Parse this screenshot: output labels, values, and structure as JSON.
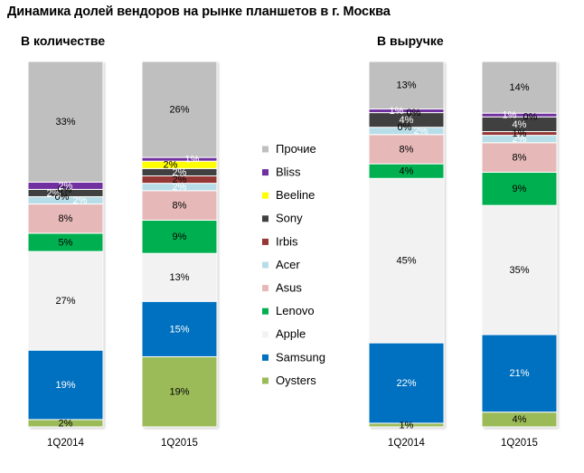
{
  "figure": {
    "title": "Динамика долей вендоров на рынке планшетов в г. Москва",
    "legend_position": "center"
  },
  "chart_data": [
    {
      "type": "bar",
      "stacked": true,
      "title": "В количестве",
      "categories": [
        "1Q2014",
        "1Q2015"
      ],
      "unit": "%",
      "series": [
        {
          "name": "Oysters",
          "color": "#9BBB59",
          "label_color": "#000000",
          "values": [
            2,
            19
          ],
          "data_labels": [
            "2%",
            "19%"
          ]
        },
        {
          "name": "Samsung",
          "color": "#0070C0",
          "label_color": "#FFFFFF",
          "values": [
            19,
            15
          ],
          "data_labels": [
            "19%",
            "15%"
          ]
        },
        {
          "name": "Apple",
          "color": "#F2F2F2",
          "label_color": "#000000",
          "values": [
            27,
            13
          ],
          "data_labels": [
            "27%",
            "13%"
          ]
        },
        {
          "name": "Lenovo",
          "color": "#00B050",
          "label_color": "#000000",
          "values": [
            5,
            9
          ],
          "data_labels": [
            "5%",
            "9%"
          ]
        },
        {
          "name": "Asus",
          "color": "#E6B9B8",
          "label_color": "#000000",
          "values": [
            8,
            8
          ],
          "data_labels": [
            "8%",
            "8%"
          ]
        },
        {
          "name": "Acer",
          "color": "#B7DEE8",
          "label_color": "#FFFFFF",
          "values": [
            2,
            2
          ],
          "data_labels": [
            "2%",
            "2%"
          ]
        },
        {
          "name": "Irbis",
          "color": "#953735",
          "label_color": "#000000",
          "values": [
            0,
            2
          ],
          "data_labels": [
            "0%",
            "2%"
          ]
        },
        {
          "name": "Sony",
          "color": "#404040",
          "label_color": "#FFFFFF",
          "values": [
            2,
            2
          ],
          "data_labels": [
            "2%",
            "2%"
          ]
        },
        {
          "name": "Beeline",
          "color": "#FFFF00",
          "label_color": "#000000",
          "values": [
            0,
            2
          ],
          "data_labels": [
            "0%",
            "2%"
          ]
        },
        {
          "name": "Bliss",
          "color": "#7030A0",
          "label_color": "#FFFFFF",
          "values": [
            2,
            1
          ],
          "data_labels": [
            "2%",
            "1%"
          ]
        },
        {
          "name": "Прочие",
          "color": "#BFBFBF",
          "label_color": "#000000",
          "values": [
            33,
            26
          ],
          "data_labels": [
            "33%",
            "26%"
          ]
        }
      ]
    },
    {
      "type": "bar",
      "stacked": true,
      "title": "В выручке",
      "categories": [
        "1Q2014",
        "1Q2015"
      ],
      "unit": "%",
      "series": [
        {
          "name": "Oysters",
          "color": "#9BBB59",
          "label_color": "#000000",
          "values": [
            1,
            4
          ],
          "data_labels": [
            "1%",
            "4%"
          ]
        },
        {
          "name": "Samsung",
          "color": "#0070C0",
          "label_color": "#FFFFFF",
          "values": [
            22,
            21
          ],
          "data_labels": [
            "22%",
            "21%"
          ]
        },
        {
          "name": "Apple",
          "color": "#F2F2F2",
          "label_color": "#000000",
          "values": [
            45,
            35
          ],
          "data_labels": [
            "45%",
            "35%"
          ]
        },
        {
          "name": "Lenovo",
          "color": "#00B050",
          "label_color": "#000000",
          "values": [
            4,
            9
          ],
          "data_labels": [
            "4%",
            "9%"
          ]
        },
        {
          "name": "Asus",
          "color": "#E6B9B8",
          "label_color": "#000000",
          "values": [
            8,
            8
          ],
          "data_labels": [
            "8%",
            "8%"
          ]
        },
        {
          "name": "Acer",
          "color": "#B7DEE8",
          "label_color": "#FFFFFF",
          "values": [
            2,
            2
          ],
          "data_labels": [
            "2%",
            "2%"
          ]
        },
        {
          "name": "Irbis",
          "color": "#953735",
          "label_color": "#000000",
          "values": [
            0,
            1
          ],
          "data_labels": [
            "0%",
            "1%"
          ]
        },
        {
          "name": "Sony",
          "color": "#404040",
          "label_color": "#FFFFFF",
          "values": [
            4,
            4
          ],
          "data_labels": [
            "4%",
            "4%"
          ]
        },
        {
          "name": "Beeline",
          "color": "#FFFF00",
          "label_color": "#000000",
          "values": [
            0,
            0
          ],
          "data_labels": [
            "0%",
            "0%"
          ]
        },
        {
          "name": "Bliss",
          "color": "#7030A0",
          "label_color": "#FFFFFF",
          "values": [
            1,
            1
          ],
          "data_labels": [
            "1%",
            "1%"
          ]
        },
        {
          "name": "Прочие",
          "color": "#BFBFBF",
          "label_color": "#000000",
          "values": [
            13,
            14
          ],
          "data_labels": [
            "13%",
            "14%"
          ]
        }
      ]
    }
  ]
}
